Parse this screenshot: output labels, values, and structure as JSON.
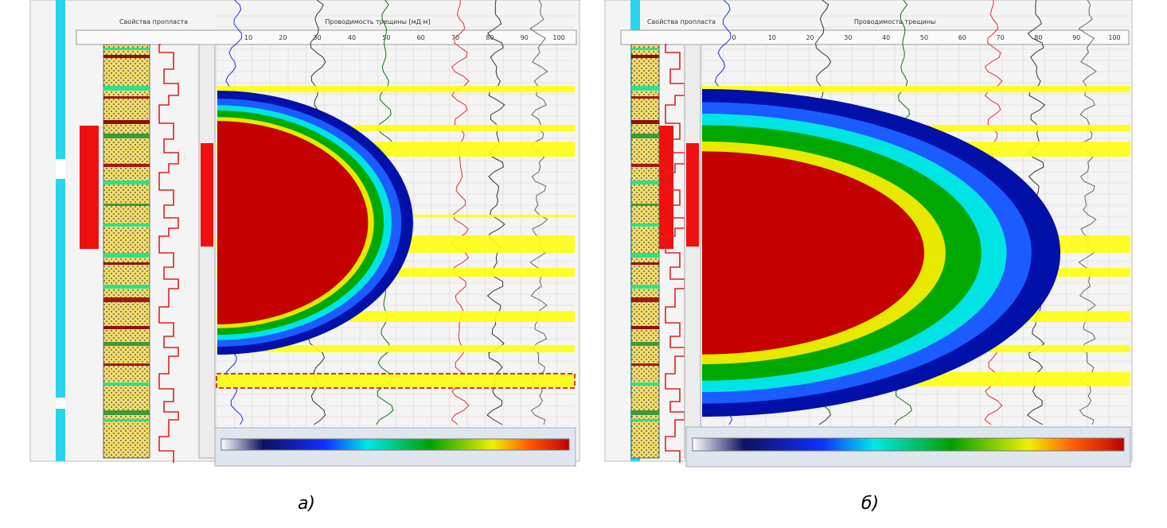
{
  "panels": [
    {
      "caption": "а)",
      "header": "Свойства пропласта",
      "track_title": "Проводимость трещины [мД·м]",
      "scale_ticks": [
        "10",
        "20",
        "30",
        "40",
        "50",
        "60",
        "70",
        "80",
        "90",
        "100"
      ]
    },
    {
      "caption": "б)",
      "header": "Свойства пропласта",
      "track_title": "Проводимость трещины",
      "scale_ticks": [
        "0",
        "10",
        "20",
        "30",
        "40",
        "50",
        "60",
        "70",
        "80",
        "90",
        "100"
      ]
    }
  ]
}
